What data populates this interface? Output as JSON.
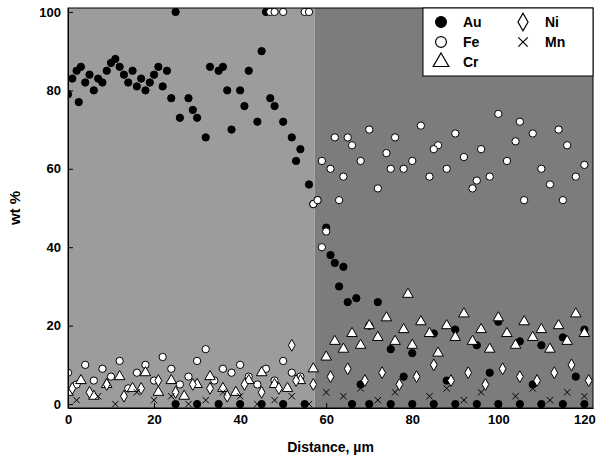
{
  "chart_data": {
    "type": "scatter",
    "x_label": "Distance, µm",
    "y_label": "wt %",
    "xlim": [
      0,
      122
    ],
    "ylim": [
      -1,
      101
    ],
    "xticks": [
      0,
      20,
      40,
      60,
      80,
      100,
      120
    ],
    "yticks": [
      0,
      20,
      40,
      60,
      80,
      100
    ],
    "legend": "upper right",
    "series": [
      {
        "name": "Au",
        "color": "#000000",
        "marker": "circle-filled",
        "x": [
          0,
          1,
          2,
          2.5,
          3,
          4,
          5,
          6,
          7,
          8,
          9,
          10,
          11,
          12,
          13,
          14,
          15,
          16,
          17,
          18,
          19,
          20,
          21,
          22,
          23,
          24,
          25,
          26,
          28,
          29,
          30,
          32,
          33,
          35,
          36,
          37,
          38,
          40,
          41,
          42,
          44,
          45,
          46,
          47,
          48,
          50,
          52,
          53,
          54,
          56,
          57,
          58,
          60,
          61,
          62,
          63,
          64,
          65,
          67,
          70,
          72,
          75,
          80,
          85,
          90,
          95,
          100,
          105,
          110,
          115,
          120,
          25,
          30,
          35,
          40,
          45,
          50,
          55,
          66,
          70,
          75,
          80,
          85,
          90,
          95,
          100,
          105,
          110,
          115,
          120,
          68,
          78,
          88,
          98,
          108,
          118
        ],
        "values": [
          79,
          83,
          85,
          77,
          86,
          82,
          84,
          80,
          83,
          82,
          85,
          87,
          88,
          86,
          84,
          82,
          85,
          81,
          83,
          80,
          82,
          84,
          86,
          81,
          85,
          78,
          100,
          73,
          78,
          75,
          73,
          68,
          86,
          85,
          86,
          80,
          70,
          80,
          76,
          85,
          72,
          90,
          100,
          78,
          76,
          72,
          68,
          62,
          65,
          56,
          51,
          52,
          45,
          38,
          36,
          30,
          35,
          26,
          27,
          20,
          26,
          14,
          13,
          18,
          19,
          15,
          21,
          16,
          15,
          17,
          19,
          0,
          0,
          0,
          0,
          0,
          0,
          0,
          0,
          0,
          0,
          0,
          0,
          0,
          0,
          0,
          0,
          0,
          0,
          0,
          5,
          7,
          6,
          8,
          5,
          7
        ]
      },
      {
        "name": "Fe",
        "color": "#000000",
        "marker": "circle-open",
        "x": [
          0,
          2,
          4,
          6,
          8,
          10,
          12,
          14,
          16,
          18,
          20,
          22,
          24,
          26,
          28,
          30,
          32,
          34,
          36,
          38,
          40,
          42,
          44,
          46,
          48,
          50,
          52,
          54,
          47,
          48,
          50,
          55,
          56,
          57,
          58,
          59,
          60,
          61,
          62,
          63,
          64,
          66,
          68,
          70,
          72,
          74,
          76,
          78,
          80,
          82,
          84,
          86,
          88,
          90,
          92,
          94,
          96,
          98,
          100,
          102,
          104,
          106,
          108,
          110,
          112,
          114,
          116,
          118,
          120,
          65,
          75,
          85,
          95,
          105,
          115,
          59
        ],
        "values": [
          8,
          5,
          10,
          6,
          9,
          7,
          11,
          4,
          8,
          10,
          6,
          12,
          9,
          5,
          7,
          11,
          14,
          6,
          9,
          8,
          10,
          7,
          5,
          9,
          6,
          11,
          8,
          7,
          100,
          100,
          100,
          100,
          100,
          51,
          52,
          62,
          44,
          60,
          68,
          52,
          58,
          66,
          62,
          70,
          55,
          64,
          68,
          60,
          62,
          71,
          58,
          66,
          60,
          69,
          63,
          55,
          65,
          58,
          74,
          62,
          67,
          52,
          69,
          60,
          56,
          70,
          66,
          58,
          61,
          68,
          60,
          65,
          57,
          72,
          52,
          40
        ]
      },
      {
        "name": "Cr",
        "color": "#000000",
        "marker": "triangle-open",
        "x": [
          0,
          3,
          6,
          9,
          12,
          15,
          18,
          21,
          24,
          27,
          30,
          33,
          36,
          39,
          42,
          45,
          48,
          51,
          54,
          57,
          60,
          62,
          64,
          66,
          68,
          70,
          72,
          74,
          76,
          78,
          80,
          82,
          84,
          86,
          88,
          90,
          92,
          94,
          96,
          98,
          100,
          102,
          104,
          106,
          108,
          110,
          112,
          114,
          116,
          118,
          120,
          79
        ],
        "values": [
          3,
          6,
          2,
          5,
          7,
          4,
          8,
          3,
          6,
          2,
          5,
          7,
          4,
          3,
          6,
          8,
          5,
          4,
          6,
          9,
          12,
          16,
          14,
          18,
          15,
          20,
          17,
          22,
          16,
          19,
          15,
          21,
          18,
          13,
          20,
          17,
          23,
          16,
          19,
          14,
          22,
          18,
          15,
          21,
          17,
          19,
          14,
          20,
          16,
          23,
          18,
          28
        ]
      },
      {
        "name": "Ni",
        "color": "#000000",
        "marker": "diamond-open",
        "x": [
          1,
          5,
          9,
          13,
          17,
          21,
          25,
          29,
          33,
          37,
          41,
          45,
          49,
          53,
          57,
          61,
          65,
          69,
          73,
          77,
          81,
          85,
          89,
          93,
          97,
          101,
          105,
          109,
          113,
          117,
          121,
          52
        ],
        "values": [
          4,
          3,
          5,
          2,
          4,
          6,
          3,
          5,
          4,
          2,
          5,
          3,
          4,
          6,
          5,
          7,
          9,
          6,
          8,
          5,
          7,
          10,
          6,
          8,
          5,
          9,
          7,
          6,
          8,
          10,
          6,
          15
        ]
      },
      {
        "name": "Mn",
        "color": "#000000",
        "marker": "x",
        "x": [
          2,
          7,
          11,
          16,
          20,
          24,
          28,
          32,
          36,
          40,
          44,
          48,
          52,
          56,
          60,
          64,
          68,
          72,
          76,
          80,
          84,
          88,
          92,
          96,
          100,
          104,
          108,
          112,
          116,
          120
        ],
        "values": [
          1,
          2,
          0,
          3,
          1,
          2,
          0,
          1,
          3,
          2,
          0,
          1,
          2,
          0,
          3,
          2,
          4,
          1,
          3,
          0,
          2,
          4,
          1,
          3,
          0,
          2,
          4,
          1,
          3,
          2
        ]
      }
    ]
  }
}
